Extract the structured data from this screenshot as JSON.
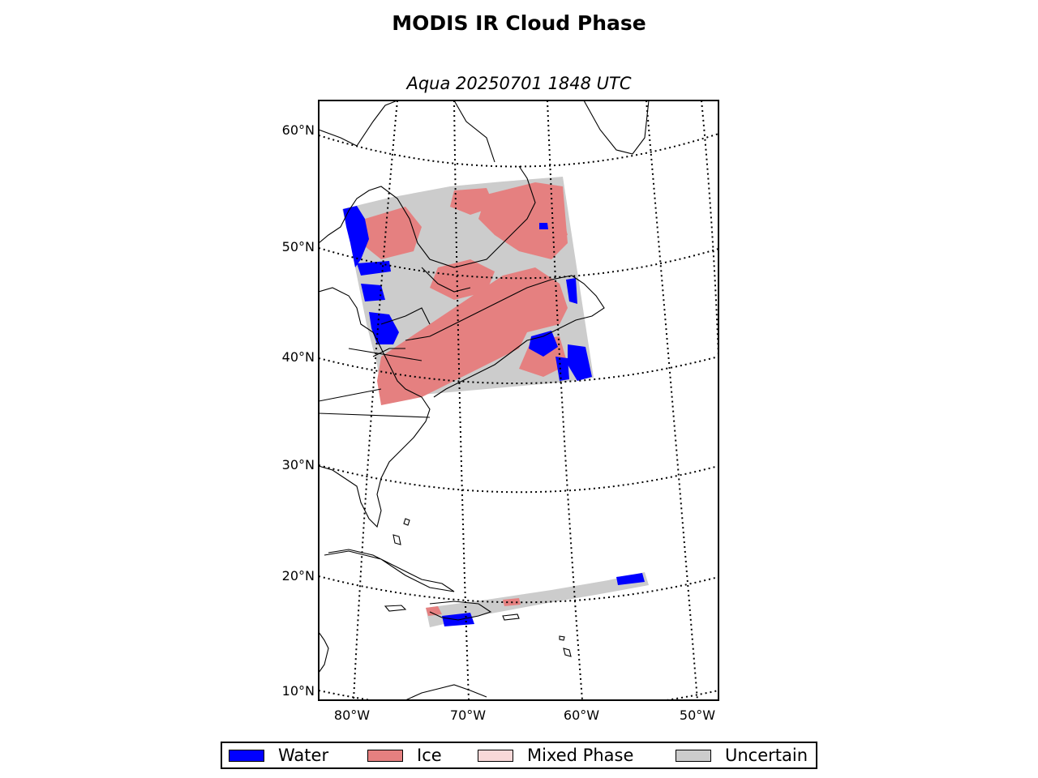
{
  "title": "MODIS IR Cloud Phase",
  "subtitle": "Aqua 20250701 1848 UTC",
  "map": {
    "lat_labels": [
      "60°N",
      "50°N",
      "40°N",
      "30°N",
      "20°N",
      "10°N"
    ],
    "lon_labels": [
      "80°W",
      "70°W",
      "60°W",
      "50°W"
    ],
    "colors": {
      "water": "#0000ff",
      "ice": "#e58080",
      "mixed": "#f8d8d8",
      "uncertain": "#cccccc",
      "coast": "#000000"
    }
  },
  "legend": {
    "items": [
      {
        "label": "Water",
        "color": "#0000ff"
      },
      {
        "label": "Ice",
        "color": "#e58080"
      },
      {
        "label": "Mixed Phase",
        "color": "#f8d8d8"
      },
      {
        "label": "Uncertain",
        "color": "#cccccc"
      }
    ]
  }
}
